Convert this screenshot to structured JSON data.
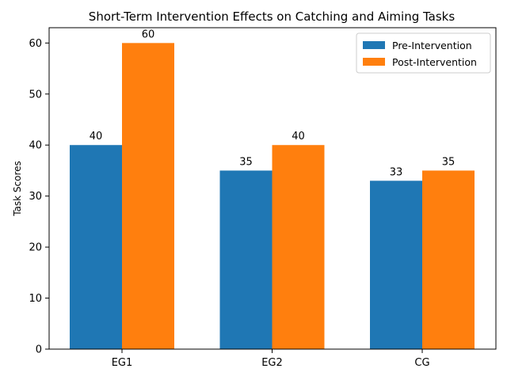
{
  "chart_data": {
    "type": "bar",
    "title": "Short-Term Intervention Effects on Catching and Aiming Tasks",
    "xlabel": "",
    "ylabel": "Task Scores",
    "categories": [
      "EG1",
      "EG2",
      "CG"
    ],
    "series": [
      {
        "name": "Pre-Intervention",
        "values": [
          40,
          35,
          33
        ],
        "color": "#1f77b4"
      },
      {
        "name": "Post-Intervention",
        "values": [
          60,
          40,
          35
        ],
        "color": "#ff7f0e"
      }
    ],
    "ylim": [
      0,
      63
    ],
    "yticks": [
      0,
      10,
      20,
      30,
      40,
      50,
      60
    ],
    "grid": false,
    "legend_position": "top-right",
    "data_labels": true
  }
}
